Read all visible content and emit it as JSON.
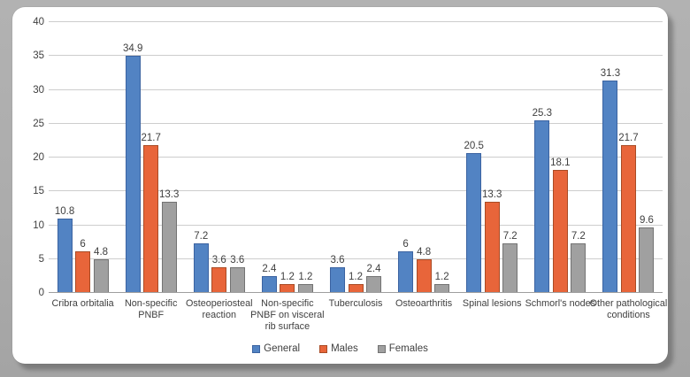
{
  "frame": {
    "background_color": "#ACACAC",
    "panel_background": "#FFFFFF"
  },
  "chart_data": {
    "type": "bar",
    "title": "",
    "xlabel": "",
    "ylabel": "",
    "ylim": [
      0,
      40
    ],
    "ytick_step": 5,
    "ytick_labels": [
      "0",
      "5",
      "10",
      "15",
      "20",
      "25",
      "30",
      "35",
      "40"
    ],
    "grid": true,
    "gridline_color": "#CDCDCD",
    "axis_line_color": "#9E9E9E",
    "label_color": "#3F3F3F",
    "legend_position": "bottom",
    "categories": [
      "Cribra orbitalia",
      "Non-specific PNBF",
      "Osteoperiosteal reaction",
      "Non-specific PNBF on visceral rib surface",
      "Tuberculosis",
      "Osteoarthritis",
      "Spinal lesions",
      "Schmorl's nodes",
      "Other pathological conditions"
    ],
    "series": [
      {
        "name": "General",
        "color": "#5283C3",
        "border_color": "#3B63A1",
        "values": [
          10.8,
          34.9,
          7.2,
          2.4,
          3.6,
          6,
          20.5,
          25.3,
          31.3
        ]
      },
      {
        "name": "Males",
        "color": "#E8653A",
        "border_color": "#A94B25",
        "values": [
          6,
          21.7,
          3.6,
          1.2,
          1.2,
          4.8,
          13.3,
          18.1,
          21.7
        ]
      },
      {
        "name": "Females",
        "color": "#A0A0A0",
        "border_color": "#737373",
        "values": [
          4.8,
          13.3,
          3.6,
          1.2,
          2.4,
          1.2,
          7.2,
          7.2,
          9.6
        ]
      }
    ]
  }
}
